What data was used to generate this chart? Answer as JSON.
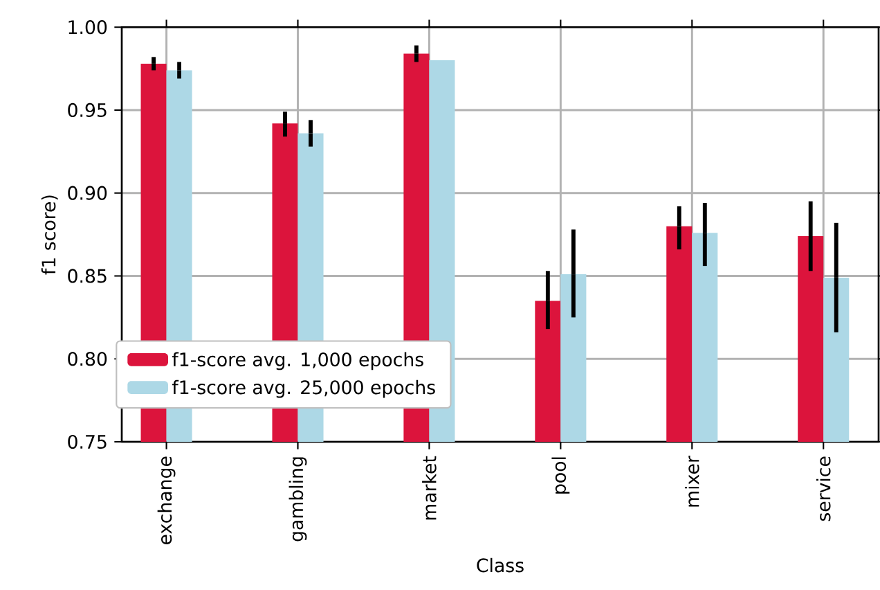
{
  "chart_data": {
    "type": "bar",
    "xlabel": "Class",
    "ylabel": "f1 score)",
    "categories": [
      "exchange",
      "gambling",
      "market",
      "pool",
      "mixer",
      "service"
    ],
    "series": [
      {
        "name": "f1-score avg. 1,000 epochs",
        "color": "#dc143c",
        "values": [
          0.978,
          0.942,
          0.984,
          0.835,
          0.88,
          0.874
        ],
        "errors": [
          [
            0.974,
            0.982
          ],
          [
            0.934,
            0.949
          ],
          [
            0.979,
            0.989
          ],
          [
            0.818,
            0.853
          ],
          [
            0.866,
            0.892
          ],
          [
            0.853,
            0.895
          ]
        ]
      },
      {
        "name": "f1-score avg. 25,000 epochs",
        "color": "#add8e6",
        "values": [
          0.974,
          0.936,
          0.98,
          0.851,
          0.876,
          0.849
        ],
        "errors": [
          [
            0.969,
            0.979
          ],
          [
            0.928,
            0.944
          ],
          null,
          [
            0.825,
            0.878
          ],
          [
            0.856,
            0.894
          ],
          [
            0.816,
            0.882
          ]
        ]
      }
    ],
    "ylim": [
      0.75,
      1.0
    ],
    "yticks": [
      0.75,
      {
        "value": 0.8,
        "label": "0.80"
      },
      0.85,
      {
        "value": 0.9,
        "label": "0.90"
      },
      0.95,
      {
        "value": 1.0,
        "label": "1.00"
      }
    ],
    "grid": true,
    "legend": "bottom left"
  }
}
